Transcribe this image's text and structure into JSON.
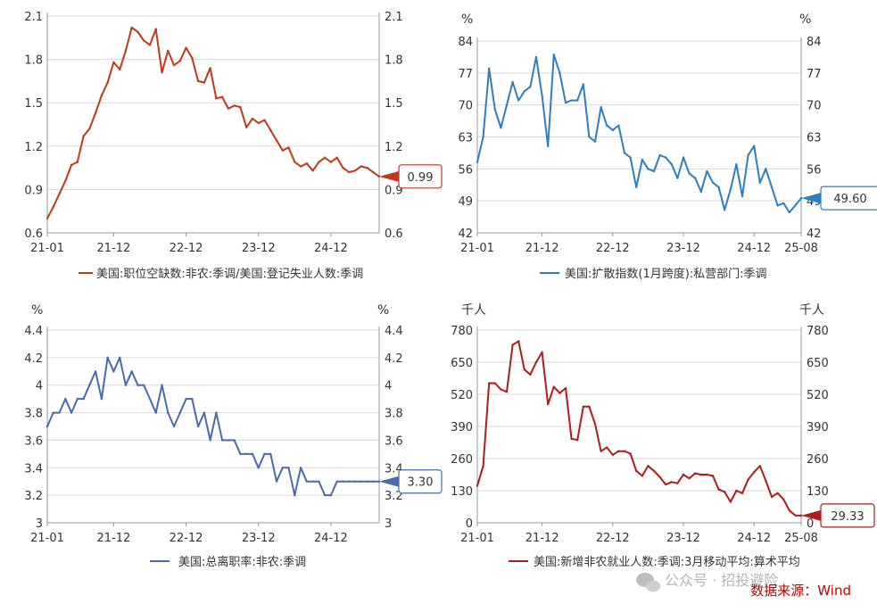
{
  "source_label": "数据来源：Wind",
  "watermark": "公众号 · 招投避险",
  "watermark_icon": "wechat-icon",
  "chart_data": [
    {
      "type": "line",
      "color": "#c0391b",
      "unit": "",
      "ylim": [
        0.6,
        2.1
      ],
      "yticks": [
        "2.1",
        "1.8",
        "1.5",
        "1.2",
        "0.9",
        "0.6"
      ],
      "xticks": [
        "21-01",
        "21-12",
        "22-12",
        "23-12",
        "24-12"
      ],
      "legend": "美国:职位空缺数:非农:季调/美国:登记失业人数:季调",
      "last_value_label": "0.99",
      "values": [
        0.7,
        0.78,
        0.87,
        0.96,
        1.07,
        1.09,
        1.27,
        1.32,
        1.43,
        1.55,
        1.64,
        1.78,
        1.73,
        1.86,
        2.02,
        1.99,
        1.93,
        1.9,
        2.01,
        1.71,
        1.86,
        1.76,
        1.79,
        1.88,
        1.81,
        1.65,
        1.64,
        1.74,
        1.53,
        1.54,
        1.46,
        1.48,
        1.47,
        1.33,
        1.39,
        1.36,
        1.38,
        1.31,
        1.24,
        1.17,
        1.19,
        1.09,
        1.06,
        1.08,
        1.03,
        1.09,
        1.12,
        1.09,
        1.12,
        1.05,
        1.02,
        1.03,
        1.06,
        1.05,
        1.02,
        0.99
      ]
    },
    {
      "type": "line",
      "color": "#2e7ebf",
      "unit": "%",
      "ylim": [
        42,
        84
      ],
      "yticks": [
        "84",
        "77",
        "70",
        "63",
        "56",
        "49",
        "42"
      ],
      "xticks": [
        "21-01",
        "21-12",
        "22-12",
        "23-12",
        "24-12",
        "25-08"
      ],
      "legend": "美国:扩散指数(1月跨度):私营部门:季调",
      "last_value_label": "49.60",
      "values": [
        57.5,
        63.0,
        78.0,
        69.0,
        65.0,
        70.0,
        75.0,
        71.0,
        73.0,
        74.0,
        80.5,
        72.0,
        61.0,
        81.0,
        77.0,
        70.5,
        71.0,
        71.0,
        74.5,
        63.0,
        62.0,
        69.5,
        65.5,
        64.5,
        65.5,
        59.5,
        58.5,
        52.0,
        58.0,
        56.0,
        55.5,
        59.0,
        58.5,
        57.0,
        54.0,
        58.5,
        55.0,
        54.0,
        51.0,
        55.5,
        53.0,
        52.0,
        47.0,
        51.5,
        57.0,
        50.0,
        59.0,
        61.0,
        53.0,
        56.0,
        52.0,
        48.0,
        48.5,
        46.5,
        48.0,
        49.6
      ]
    },
    {
      "type": "line",
      "color": "#4a6aa8",
      "unit": "%",
      "ylim": [
        3.0,
        4.4
      ],
      "yticks": [
        "4.4",
        "4.2",
        "4",
        "3.8",
        "3.6",
        "3.4",
        "3.2",
        "3"
      ],
      "xticks": [
        "21-01",
        "21-12",
        "22-12",
        "23-12",
        "24-12"
      ],
      "legend": "美国:总离职率:非农:季调",
      "last_value_label": "3.30",
      "values": [
        3.7,
        3.8,
        3.8,
        3.9,
        3.8,
        3.9,
        3.9,
        4.0,
        4.1,
        3.9,
        4.2,
        4.1,
        4.2,
        4.0,
        4.1,
        4.0,
        4.0,
        3.9,
        3.8,
        4.0,
        3.8,
        3.7,
        3.8,
        3.9,
        3.9,
        3.7,
        3.8,
        3.6,
        3.8,
        3.6,
        3.6,
        3.6,
        3.5,
        3.5,
        3.5,
        3.4,
        3.5,
        3.5,
        3.3,
        3.4,
        3.4,
        3.2,
        3.4,
        3.3,
        3.3,
        3.3,
        3.2,
        3.2,
        3.3,
        3.3,
        3.3,
        3.3,
        3.3,
        3.3,
        3.3,
        3.3
      ]
    },
    {
      "type": "line",
      "color": "#b01c1c",
      "unit": "千人",
      "ylim": [
        0,
        780
      ],
      "yticks": [
        "780",
        "650",
        "520",
        "390",
        "260",
        "130",
        "0"
      ],
      "xticks": [
        "21-01",
        "21-12",
        "22-12",
        "23-12",
        "24-12",
        "25-08"
      ],
      "legend": "美国:新增非农就业人数:季调:3月移动平均:算术平均",
      "last_value_label": "29.33",
      "values": [
        150,
        230,
        565,
        565,
        540,
        530,
        720,
        735,
        620,
        600,
        650,
        690,
        480,
        550,
        525,
        545,
        340,
        335,
        470,
        470,
        400,
        290,
        305,
        275,
        290,
        290,
        280,
        210,
        190,
        230,
        210,
        185,
        155,
        165,
        160,
        195,
        180,
        200,
        195,
        195,
        190,
        135,
        125,
        85,
        130,
        120,
        175,
        205,
        230,
        170,
        105,
        120,
        95,
        50,
        30,
        29.33
      ]
    }
  ]
}
